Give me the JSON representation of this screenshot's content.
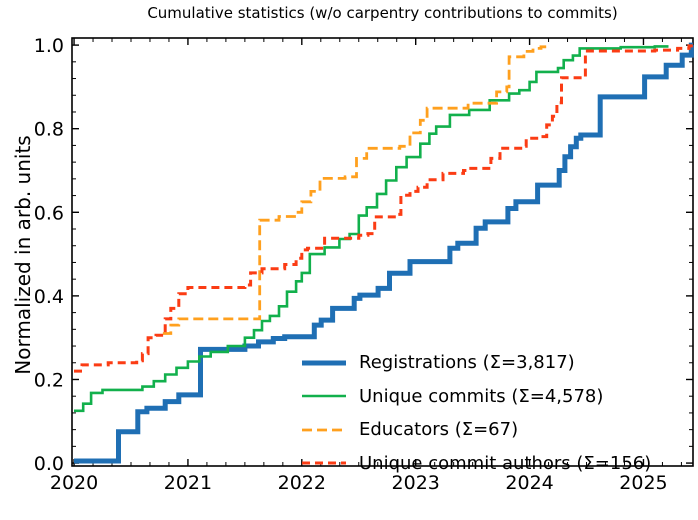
{
  "chart_data": {
    "type": "line",
    "title": "Cumulative statistics (w/o carpentry contributions to commits)",
    "xlabel": "",
    "ylabel": "Normalized in arb. units",
    "xlim": [
      2019.982,
      2025.435
    ],
    "ylim": [
      -0.007,
      1.017
    ],
    "grid": false,
    "legend_position": "lower right, frameless",
    "x_ticks": [
      {
        "v": 2020,
        "label": "2020"
      },
      {
        "v": 2021,
        "label": "2021"
      },
      {
        "v": 2022,
        "label": "2022"
      },
      {
        "v": 2023,
        "label": "2023"
      },
      {
        "v": 2024,
        "label": "2024"
      },
      {
        "v": 2025,
        "label": "2025"
      }
    ],
    "y_ticks": [
      {
        "v": 0.0,
        "label": "0.0"
      },
      {
        "v": 0.2,
        "label": "0.2"
      },
      {
        "v": 0.4,
        "label": "0.4"
      },
      {
        "v": 0.6,
        "label": "0.6"
      },
      {
        "v": 0.8,
        "label": "0.8"
      },
      {
        "v": 1.0,
        "label": "1.0"
      }
    ],
    "x_minor_step": 0.1666667,
    "y_minor_step": 0.04,
    "series": [
      {
        "name": "registrations",
        "label": "Registrations  (Σ=3,817)",
        "total": "3,817",
        "color": "#1f6fb4",
        "style": "solid",
        "width": 5,
        "end_x": 2025.435,
        "points": [
          [
            2020.0,
            0.005
          ],
          [
            2020.39,
            0.075
          ],
          [
            2020.56,
            0.123
          ],
          [
            2020.64,
            0.131
          ],
          [
            2020.8,
            0.147
          ],
          [
            2020.92,
            0.163
          ],
          [
            2021.11,
            0.272
          ],
          [
            2021.5,
            0.28
          ],
          [
            2021.62,
            0.29
          ],
          [
            2021.75,
            0.298
          ],
          [
            2021.85,
            0.302
          ],
          [
            2022.11,
            0.33
          ],
          [
            2022.17,
            0.342
          ],
          [
            2022.27,
            0.37
          ],
          [
            2022.46,
            0.394
          ],
          [
            2022.51,
            0.402
          ],
          [
            2022.67,
            0.418
          ],
          [
            2022.77,
            0.454
          ],
          [
            2022.95,
            0.482
          ],
          [
            2023.3,
            0.514
          ],
          [
            2023.37,
            0.526
          ],
          [
            2023.53,
            0.562
          ],
          [
            2023.61,
            0.577
          ],
          [
            2023.81,
            0.609
          ],
          [
            2023.88,
            0.625
          ],
          [
            2024.07,
            0.665
          ],
          [
            2024.26,
            0.7
          ],
          [
            2024.31,
            0.733
          ],
          [
            2024.36,
            0.757
          ],
          [
            2024.41,
            0.777
          ],
          [
            2024.45,
            0.785
          ],
          [
            2024.62,
            0.876
          ],
          [
            2025.01,
            0.924
          ],
          [
            2025.2,
            0.952
          ],
          [
            2025.34,
            0.976
          ],
          [
            2025.42,
            1.0
          ]
        ]
      },
      {
        "name": "unique-commits",
        "label": "Unique commits (Σ=4,578)",
        "total": "4,578",
        "color": "#12b04c",
        "style": "solid",
        "width": 2.6,
        "end_x": 2025.22,
        "points": [
          [
            2020.0,
            0.125
          ],
          [
            2020.08,
            0.142
          ],
          [
            2020.15,
            0.168
          ],
          [
            2020.25,
            0.175
          ],
          [
            2020.6,
            0.183
          ],
          [
            2020.7,
            0.196
          ],
          [
            2020.8,
            0.212
          ],
          [
            2020.9,
            0.228
          ],
          [
            2021.0,
            0.243
          ],
          [
            2021.1,
            0.255
          ],
          [
            2021.2,
            0.266
          ],
          [
            2021.35,
            0.28
          ],
          [
            2021.5,
            0.3
          ],
          [
            2021.58,
            0.318
          ],
          [
            2021.65,
            0.34
          ],
          [
            2021.72,
            0.352
          ],
          [
            2021.8,
            0.375
          ],
          [
            2021.87,
            0.41
          ],
          [
            2021.95,
            0.435
          ],
          [
            2022.0,
            0.455
          ],
          [
            2022.07,
            0.5
          ],
          [
            2022.2,
            0.516
          ],
          [
            2022.33,
            0.536
          ],
          [
            2022.42,
            0.548
          ],
          [
            2022.5,
            0.592
          ],
          [
            2022.57,
            0.612
          ],
          [
            2022.66,
            0.644
          ],
          [
            2022.74,
            0.676
          ],
          [
            2022.83,
            0.708
          ],
          [
            2022.92,
            0.732
          ],
          [
            2023.04,
            0.764
          ],
          [
            2023.12,
            0.788
          ],
          [
            2023.18,
            0.805
          ],
          [
            2023.3,
            0.833
          ],
          [
            2023.47,
            0.845
          ],
          [
            2023.65,
            0.868
          ],
          [
            2023.82,
            0.884
          ],
          [
            2023.91,
            0.892
          ],
          [
            2024.0,
            0.912
          ],
          [
            2024.06,
            0.936
          ],
          [
            2024.25,
            0.945
          ],
          [
            2024.3,
            0.964
          ],
          [
            2024.38,
            0.975
          ],
          [
            2024.44,
            0.992
          ],
          [
            2024.8,
            0.995
          ],
          [
            2025.1,
            0.997
          ]
        ]
      },
      {
        "name": "educators",
        "label": "Educators (Σ=67)",
        "total": "67",
        "color": "#ffa01e",
        "style": "dashed",
        "width": 2.8,
        "end_x": 2024.16,
        "points": [
          [
            2020.78,
            0.31
          ],
          [
            2020.85,
            0.33
          ],
          [
            2020.92,
            0.345
          ],
          [
            2021.63,
            0.581
          ],
          [
            2021.8,
            0.59
          ],
          [
            2021.95,
            0.6
          ],
          [
            2022.0,
            0.625
          ],
          [
            2022.08,
            0.65
          ],
          [
            2022.16,
            0.681
          ],
          [
            2022.38,
            0.685
          ],
          [
            2022.48,
            0.729
          ],
          [
            2022.57,
            0.753
          ],
          [
            2022.86,
            0.758
          ],
          [
            2022.95,
            0.79
          ],
          [
            2023.04,
            0.82
          ],
          [
            2023.1,
            0.849
          ],
          [
            2023.46,
            0.861
          ],
          [
            2023.71,
            0.888
          ],
          [
            2023.8,
            0.9
          ],
          [
            2023.82,
            0.972
          ],
          [
            2023.95,
            0.985
          ],
          [
            2024.03,
            0.992
          ],
          [
            2024.1,
            0.996
          ]
        ]
      },
      {
        "name": "unique-commit-authors",
        "label": "Unique commit authors (Σ=156)",
        "total": "156",
        "color": "#fb3c14",
        "style": "dashed",
        "width": 3,
        "end_x": 2025.435,
        "points": [
          [
            2020.0,
            0.22
          ],
          [
            2020.07,
            0.235
          ],
          [
            2020.3,
            0.24
          ],
          [
            2020.55,
            0.245
          ],
          [
            2020.6,
            0.262
          ],
          [
            2020.65,
            0.3
          ],
          [
            2020.72,
            0.306
          ],
          [
            2020.8,
            0.345
          ],
          [
            2020.85,
            0.37
          ],
          [
            2020.92,
            0.405
          ],
          [
            2021.0,
            0.42
          ],
          [
            2021.5,
            0.426
          ],
          [
            2021.55,
            0.455
          ],
          [
            2021.65,
            0.465
          ],
          [
            2021.85,
            0.475
          ],
          [
            2021.95,
            0.49
          ],
          [
            2022.0,
            0.51
          ],
          [
            2022.05,
            0.514
          ],
          [
            2022.2,
            0.538
          ],
          [
            2022.5,
            0.545
          ],
          [
            2022.58,
            0.549
          ],
          [
            2022.64,
            0.589
          ],
          [
            2022.83,
            0.595
          ],
          [
            2022.87,
            0.641
          ],
          [
            2022.95,
            0.65
          ],
          [
            2023.02,
            0.66
          ],
          [
            2023.1,
            0.678
          ],
          [
            2023.24,
            0.693
          ],
          [
            2023.42,
            0.7
          ],
          [
            2023.45,
            0.705
          ],
          [
            2023.66,
            0.729
          ],
          [
            2023.74,
            0.753
          ],
          [
            2023.95,
            0.758
          ],
          [
            2023.97,
            0.777
          ],
          [
            2024.08,
            0.781
          ],
          [
            2024.15,
            0.809
          ],
          [
            2024.2,
            0.83
          ],
          [
            2024.24,
            0.862
          ],
          [
            2024.28,
            0.922
          ],
          [
            2024.49,
            0.986
          ],
          [
            2025.1,
            0.988
          ],
          [
            2025.3,
            0.992
          ],
          [
            2025.4,
            0.998
          ]
        ]
      }
    ]
  }
}
